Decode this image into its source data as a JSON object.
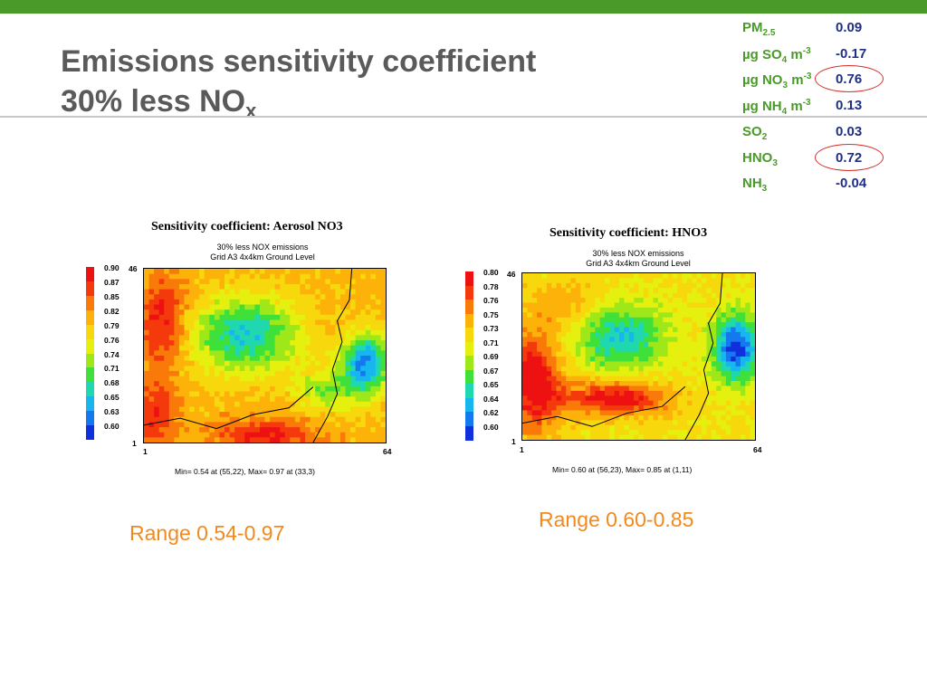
{
  "slide": {
    "title_line1": "Emissions sensitivity coefficient",
    "title_line2_main": "30% less NO",
    "title_line2_sub": "x"
  },
  "stats": [
    {
      "name": "PM",
      "sub": "2.5",
      "sup": "",
      "tail": "",
      "value": "0.09",
      "circled": false
    },
    {
      "name": "µg SO",
      "sub": "4",
      "sup": "-3",
      "tail": " m",
      "value": "-0.17",
      "circled": false
    },
    {
      "name": "µg NO",
      "sub": "3",
      "sup": "-3",
      "tail": " m",
      "value": "0.76",
      "circled": true
    },
    {
      "name": "µg NH",
      "sub": "4",
      "sup": "-3",
      "tail": " m",
      "value": "0.13",
      "circled": false
    },
    {
      "name": "SO",
      "sub": "2",
      "sup": "",
      "tail": "",
      "value": "0.03",
      "circled": false
    },
    {
      "name": "HNO",
      "sub": "3",
      "sup": "",
      "tail": "",
      "value": "0.72",
      "circled": true
    },
    {
      "name": "NH",
      "sub": "3",
      "sup": "",
      "tail": "",
      "value": "-0.04",
      "circled": false
    }
  ],
  "panels": [
    {
      "title": "Sensitivity coefficient: Aerosol NO3",
      "sub1": "30% less NOX emissions",
      "sub2": "Grid A3 4x4km Ground Level",
      "legend": [
        "0.90",
        "0.87",
        "0.85",
        "0.82",
        "0.79",
        "0.76",
        "0.74",
        "0.71",
        "0.68",
        "0.65",
        "0.63",
        "0.60"
      ],
      "y_top": "46",
      "y_bottom": "1",
      "x_left": "1",
      "x_right": "64",
      "minmax": "Min=    0.54 at (55,22), Max=    0.97 at (33,3)",
      "range": "Range 0.54-0.97"
    },
    {
      "title": "Sensitivity coefficient: HNO3",
      "sub1": "30% less NOX emissions",
      "sub2": "Grid A3 4x4km Ground Level",
      "legend": [
        "0.80",
        "0.78",
        "0.76",
        "0.75",
        "0.73",
        "0.71",
        "0.69",
        "0.67",
        "0.65",
        "0.64",
        "0.62",
        "0.60"
      ],
      "y_top": "46",
      "y_bottom": "1",
      "x_left": "1",
      "x_right": "64",
      "minmax": "Min=    0.60 at (56,23), Max=    0.85 at (1,11)",
      "range": "Range 0.60-0.85"
    }
  ],
  "colors": {
    "accent_green": "#4a9a2a",
    "value_blue": "#1f2f86",
    "circle_red": "#d6302a",
    "range_orange": "#f08a1e"
  }
}
